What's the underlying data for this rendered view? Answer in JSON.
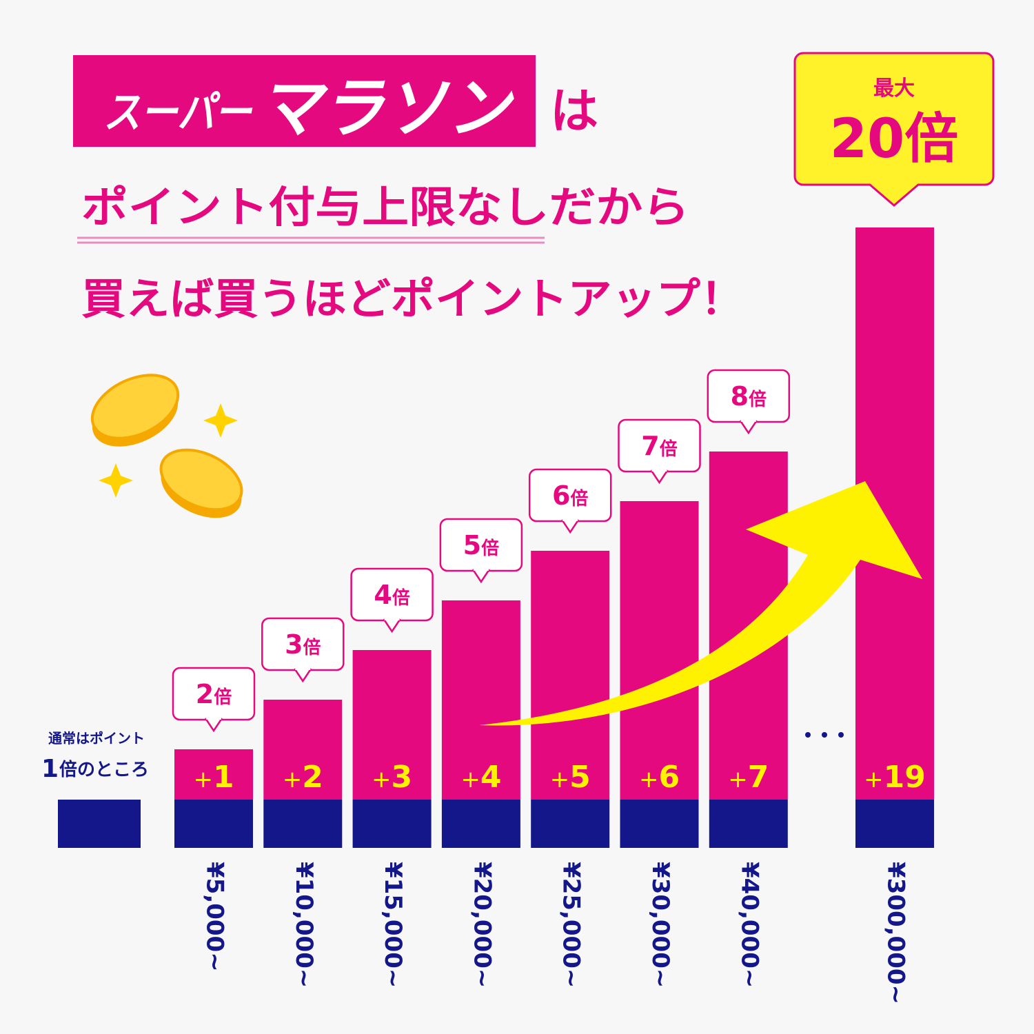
{
  "header": {
    "title_small": "スーパー",
    "title_large": "マラソン",
    "particle": "は",
    "line2": "ポイント付与上限なしだから",
    "line3": "買えば買うほどポイントアップ！"
  },
  "max_badge": {
    "label": "最大",
    "value": "20倍"
  },
  "normal": {
    "line1": "通常はポイント",
    "number": "1",
    "rest": "倍のところ"
  },
  "bars": [
    {
      "multiplier": "2",
      "unit": "倍",
      "sign": "+",
      "bonus": "1",
      "price": "¥5,000~"
    },
    {
      "multiplier": "3",
      "unit": "倍",
      "sign": "+",
      "bonus": "2",
      "price": "¥10,000~"
    },
    {
      "multiplier": "4",
      "unit": "倍",
      "sign": "+",
      "bonus": "3",
      "price": "¥15,000~"
    },
    {
      "multiplier": "5",
      "unit": "倍",
      "sign": "+",
      "bonus": "4",
      "price": "¥20,000~"
    },
    {
      "multiplier": "6",
      "unit": "倍",
      "sign": "+",
      "bonus": "5",
      "price": "¥25,000~"
    },
    {
      "multiplier": "7",
      "unit": "倍",
      "sign": "+",
      "bonus": "6",
      "price": "¥30,000~"
    },
    {
      "multiplier": "8",
      "unit": "倍",
      "sign": "+",
      "bonus": "7",
      "price": "¥40,000~"
    },
    {
      "sign": "+",
      "bonus": "19",
      "price": "¥300,000~"
    }
  ]
}
